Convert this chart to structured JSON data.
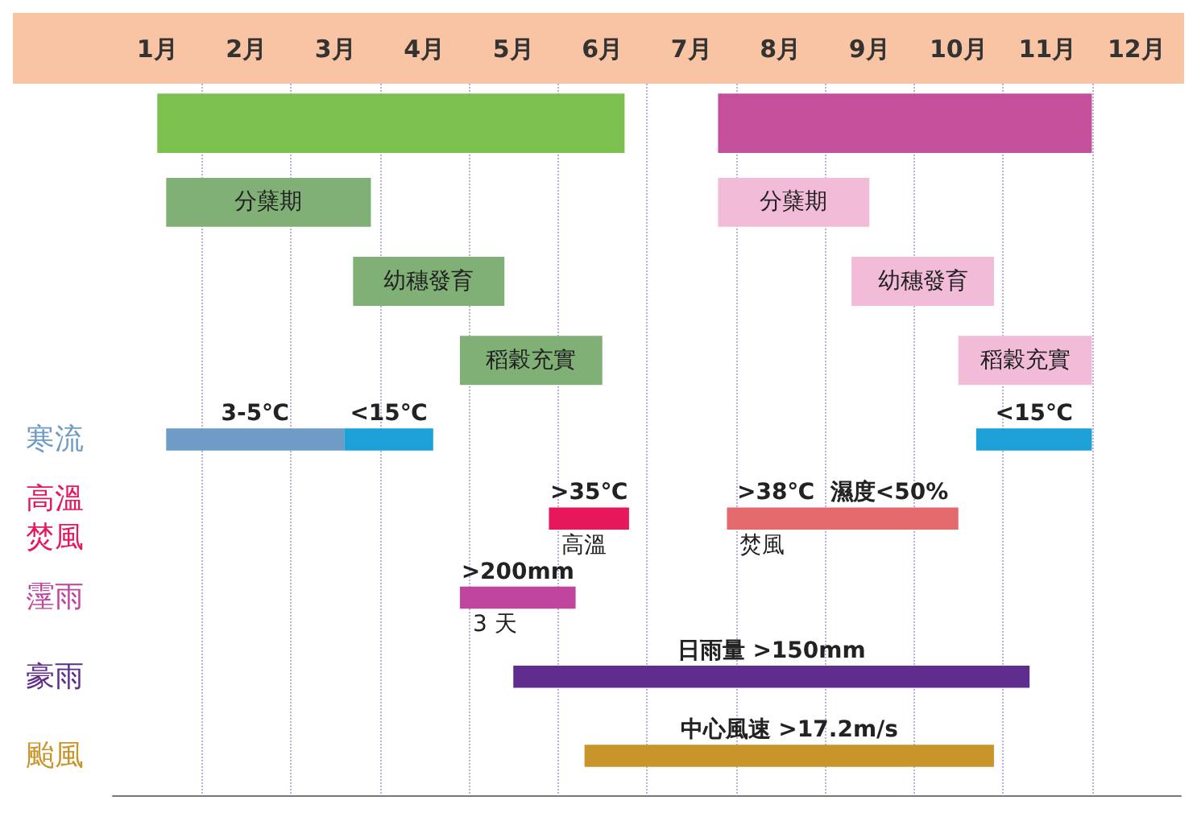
{
  "chart_data": {
    "type": "bar",
    "orientation": "horizontal",
    "categories": [
      null,
      null,
      null,
      null,
      "寒流",
      "高溫焚風",
      "霪雨",
      "豪雨",
      "颱風"
    ],
    "xlim": [
      0,
      12
    ],
    "xticks": [
      {
        "value": 0.5,
        "label": "1月"
      },
      {
        "value": 1.5,
        "label": "2月"
      },
      {
        "value": 2.5,
        "label": "3月"
      },
      {
        "value": 3.5,
        "label": "4月"
      },
      {
        "value": 4.5,
        "label": "5月"
      },
      {
        "value": 5.5,
        "label": "6月"
      },
      {
        "value": 6.5,
        "label": "7月"
      },
      {
        "value": 7.5,
        "label": "8月"
      },
      {
        "value": 8.5,
        "label": "9月"
      },
      {
        "value": 9.5,
        "label": "10月"
      },
      {
        "value": 10.5,
        "label": "11月"
      },
      {
        "value": 11.5,
        "label": "12月"
      },
      {
        "value": 1,
        "label": null
      },
      {
        "value": 2,
        "label": null
      },
      {
        "value": 3,
        "label": null
      },
      {
        "value": 4,
        "label": null
      },
      {
        "value": 5,
        "label": null
      },
      {
        "value": 6,
        "label": null
      },
      {
        "value": 7,
        "label": null
      },
      {
        "value": 8,
        "label": null
      },
      {
        "value": 9,
        "label": null
      },
      {
        "value": 10,
        "label": null
      },
      {
        "value": 11,
        "label": null
      }
    ],
    "grid": "x",
    "series": [
      {
        "color": "#7cc04f",
        "base": [
          0.5,
          null,
          null,
          null,
          null,
          null,
          null,
          null,
          null
        ],
        "values": [
          5.25,
          null,
          null,
          null,
          null,
          null,
          null,
          null,
          null
        ]
      },
      {
        "color": "#c4509c",
        "base": [
          6.8,
          null,
          null,
          null,
          null,
          null,
          null,
          null,
          null
        ],
        "values": [
          4.2,
          null,
          null,
          null,
          null,
          null,
          null,
          null,
          null
        ]
      },
      {
        "name": "分蘖期",
        "color": "#80b076",
        "base": [
          null,
          0.6,
          null,
          null,
          null,
          null,
          null,
          null,
          null
        ],
        "values": [
          null,
          2.3,
          null,
          null,
          null,
          null,
          null,
          null,
          null
        ]
      },
      {
        "name": "幼穗發育",
        "color": "#80b076",
        "base": [
          null,
          null,
          2.7,
          null,
          null,
          null,
          null,
          null,
          null
        ],
        "values": [
          null,
          null,
          1.7,
          null,
          null,
          null,
          null,
          null,
          null
        ]
      },
      {
        "name": "稻穀充實",
        "color": "#80b076",
        "base": [
          null,
          null,
          null,
          3.9,
          null,
          null,
          null,
          null,
          null
        ],
        "values": [
          null,
          null,
          null,
          1.6,
          null,
          null,
          null,
          null,
          null
        ]
      },
      {
        "name": "分蘖期",
        "color": "#f2bcd9",
        "base": [
          null,
          6.8,
          null,
          null,
          null,
          null,
          null,
          null,
          null
        ],
        "values": [
          null,
          1.7,
          null,
          null,
          null,
          null,
          null,
          null,
          null
        ]
      },
      {
        "name": "幼穗發育",
        "color": "#f2bcd9",
        "base": [
          null,
          null,
          8.3,
          null,
          null,
          null,
          null,
          null,
          null
        ],
        "values": [
          null,
          null,
          1.6,
          null,
          null,
          null,
          null,
          null,
          null
        ]
      },
      {
        "name": "稻穀充實",
        "color": "#f2bcd9",
        "base": [
          null,
          null,
          null,
          9.5,
          null,
          null,
          null,
          null,
          null
        ],
        "values": [
          null,
          null,
          null,
          1.5,
          null,
          null,
          null,
          null,
          null
        ]
      },
      {
        "name": "3-5℃",
        "color": "#6f9cc6",
        "base": [
          null,
          null,
          null,
          null,
          0.6,
          null,
          null,
          null,
          null
        ],
        "values": [
          null,
          null,
          null,
          null,
          2.0,
          null,
          null,
          null,
          null
        ]
      },
      {
        "name": "<15℃",
        "color": "#1ea0d8",
        "base": [
          null,
          null,
          null,
          null,
          2.6,
          null,
          null,
          null,
          null
        ],
        "values": [
          null,
          null,
          null,
          null,
          1.0,
          null,
          null,
          null,
          null
        ]
      },
      {
        "name": "<15℃",
        "color": "#1ea0d8",
        "base": [
          null,
          null,
          null,
          null,
          9.7,
          null,
          null,
          null,
          null
        ],
        "values": [
          null,
          null,
          null,
          null,
          1.3,
          null,
          null,
          null,
          null
        ]
      },
      {
        "name": ">35℃",
        "color": "#e6175a",
        "base": [
          null,
          null,
          null,
          null,
          null,
          4.9,
          null,
          null,
          null
        ],
        "values": [
          null,
          null,
          null,
          null,
          null,
          0.9,
          null,
          null,
          null
        ]
      },
      {
        "name": ">38℃  濕度<50%",
        "color": "#e46a6e",
        "base": [
          null,
          null,
          null,
          null,
          null,
          6.9,
          null,
          null,
          null
        ],
        "values": [
          null,
          null,
          null,
          null,
          null,
          2.6,
          null,
          null,
          null
        ]
      },
      {
        "name": ">200mm",
        "color": "#c0459e",
        "base": [
          null,
          null,
          null,
          null,
          null,
          null,
          3.9,
          null,
          null
        ],
        "values": [
          null,
          null,
          null,
          null,
          null,
          null,
          1.3,
          null,
          null
        ]
      },
      {
        "name": "日雨量 >150mm",
        "color": "#5e2d8e",
        "base": [
          null,
          null,
          null,
          null,
          null,
          null,
          null,
          4.5,
          null
        ],
        "values": [
          null,
          null,
          null,
          null,
          null,
          null,
          null,
          5.8,
          null
        ]
      },
      {
        "name": "中心風速 >17.2m/s",
        "color": "#c9952a",
        "base": [
          null,
          null,
          null,
          null,
          null,
          null,
          null,
          null,
          5.3
        ],
        "values": [
          null,
          null,
          null,
          null,
          null,
          null,
          null,
          null,
          4.6
        ]
      }
    ],
    "annotations": [
      {
        "text": "高溫",
        "x": 4.9,
        "y": "高溫焚風"
      },
      {
        "text": "焚風",
        "x": 6.9,
        "y": "高溫焚風"
      },
      {
        "text": "3 天",
        "x": 3.9,
        "y": "霪雨"
      }
    ]
  }
}
